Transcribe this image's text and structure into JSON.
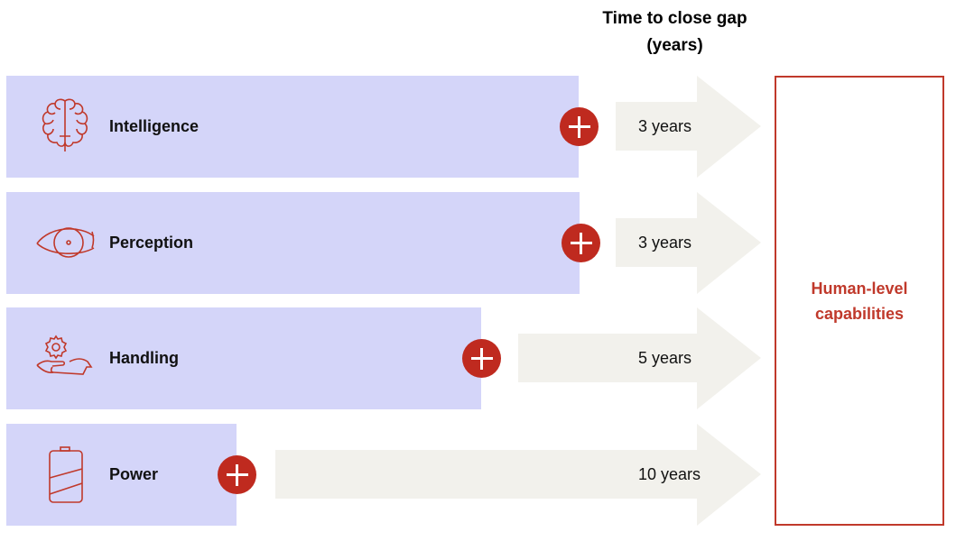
{
  "header": {
    "line1": "Time to close gap",
    "line2": "(years)"
  },
  "rows": [
    {
      "label": "Intelligence",
      "icon": "brain-icon",
      "gap": "3 years",
      "gap_years": 3
    },
    {
      "label": "Perception",
      "icon": "eye-icon",
      "gap": "3 years",
      "gap_years": 3
    },
    {
      "label": "Handling",
      "icon": "hand-gear-icon",
      "gap": "5 years",
      "gap_years": 5
    },
    {
      "label": "Power",
      "icon": "battery-icon",
      "gap": "10 years",
      "gap_years": 10
    }
  ],
  "target": {
    "line1": "Human-level",
    "line2": "capabilities"
  },
  "colors": {
    "bar": "#d4d5f9",
    "accent": "#bf2a1f",
    "arrow": "#f2f1ec"
  }
}
